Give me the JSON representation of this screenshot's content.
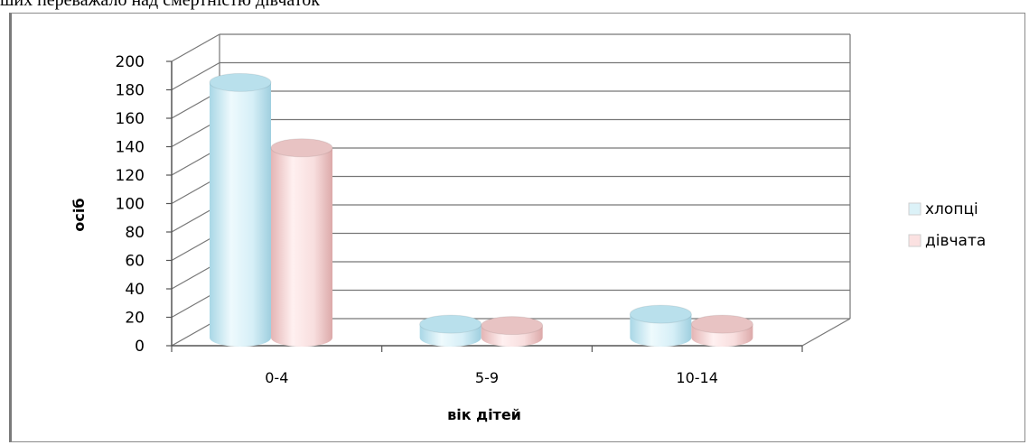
{
  "caption": "ших переважало над смертністю дівчаток",
  "chart_data": {
    "type": "bar",
    "style": "3d-cylinder",
    "categories": [
      "0-4",
      "5-9",
      "10-14"
    ],
    "series": [
      {
        "name": "хлопці",
        "values": [
          182,
          12,
          19
        ],
        "color": "#dcf2f8"
      },
      {
        "name": "дівчата",
        "values": [
          136,
          11,
          12
        ],
        "color": "#fbe1e1"
      }
    ],
    "xlabel": "вік дітей",
    "ylabel": "осіб",
    "ylim": [
      0,
      200
    ],
    "yticks": [
      0,
      20,
      40,
      60,
      80,
      100,
      120,
      140,
      160,
      180,
      200
    ],
    "grid": true,
    "legend_position": "right"
  }
}
